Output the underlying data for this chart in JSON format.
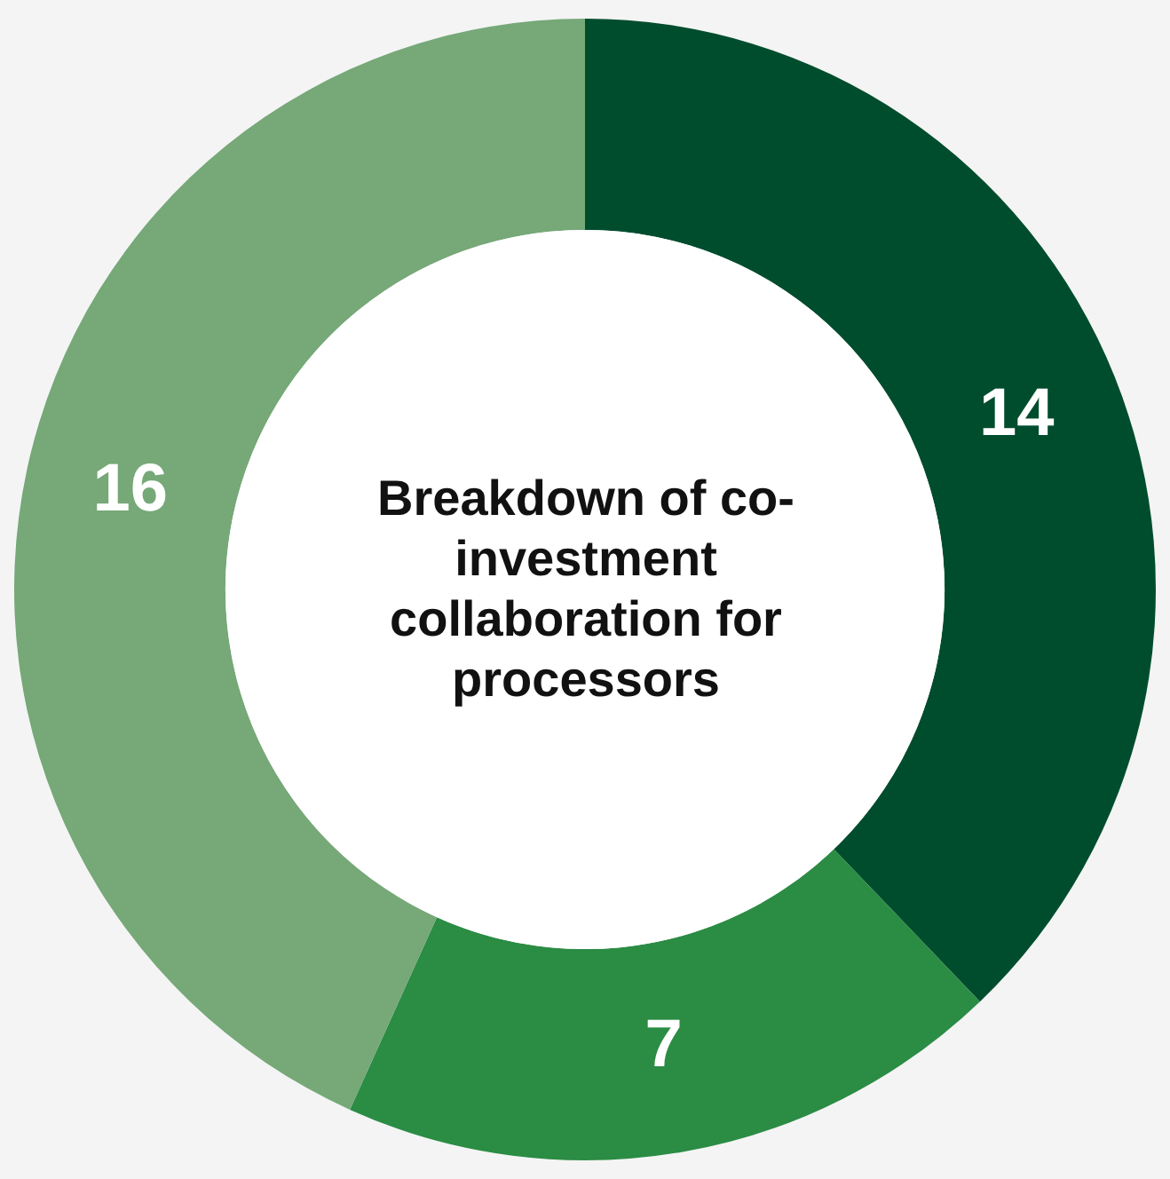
{
  "chart_data": {
    "type": "donut",
    "title": "Breakdown of co-investment collaboration for processors",
    "categories": [
      null,
      null,
      null
    ],
    "values": [
      14,
      7,
      16
    ],
    "colors": [
      "#004d2e",
      "#2b8c44",
      "#76a878"
    ],
    "data_labels": true,
    "legend": false
  }
}
